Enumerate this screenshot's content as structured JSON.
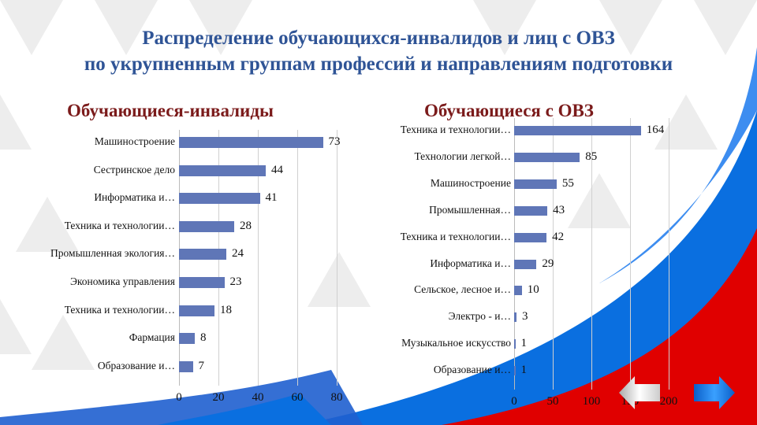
{
  "slide": {
    "title_line1": "Распределение обучающихся-инвалидов  и лиц с ОВЗ",
    "title_line2": "по укрупненным группам профессий и направлениям подготовки"
  },
  "colors": {
    "bar": "#5f76b7",
    "title": "#2f5496",
    "chart_title": "#7b1b1b",
    "blue": "#0a6fe0",
    "red": "#e00000"
  },
  "nav": {
    "prev_icon": "arrow-left-icon",
    "next_icon": "arrow-right-icon"
  },
  "chart_data": [
    {
      "type": "bar",
      "orientation": "horizontal",
      "title": "Обучающиеся-инвалиды",
      "categories": [
        "Машиностроение",
        "Сестринское дело",
        "Информатика и…",
        "Техника и технологии…",
        "Промышленная экология…",
        "Экономика управления",
        "Техника и технологии…",
        "Фармация",
        "Образование и…"
      ],
      "values": [
        73,
        44,
        41,
        28,
        24,
        23,
        18,
        8,
        7
      ],
      "xlim": [
        0,
        80
      ],
      "xticks": [
        "0",
        "20",
        "40",
        "60",
        "80"
      ],
      "grid": true
    },
    {
      "type": "bar",
      "orientation": "horizontal",
      "title": "Обучающиеся с ОВЗ",
      "categories": [
        "Техника и технологии…",
        "Технологии легкой…",
        "Машиностроение",
        "Промышленная…",
        "Техника и технологии…",
        "Информатика и…",
        "Сельское, лесное и…",
        "Электро - и…",
        "Музыкальное искусство",
        "Образование и…"
      ],
      "values": [
        164,
        85,
        55,
        43,
        42,
        29,
        10,
        3,
        1,
        1
      ],
      "xlim": [
        0,
        200
      ],
      "xticks": [
        "0",
        "50",
        "100",
        "150",
        "200"
      ],
      "grid": true
    }
  ]
}
